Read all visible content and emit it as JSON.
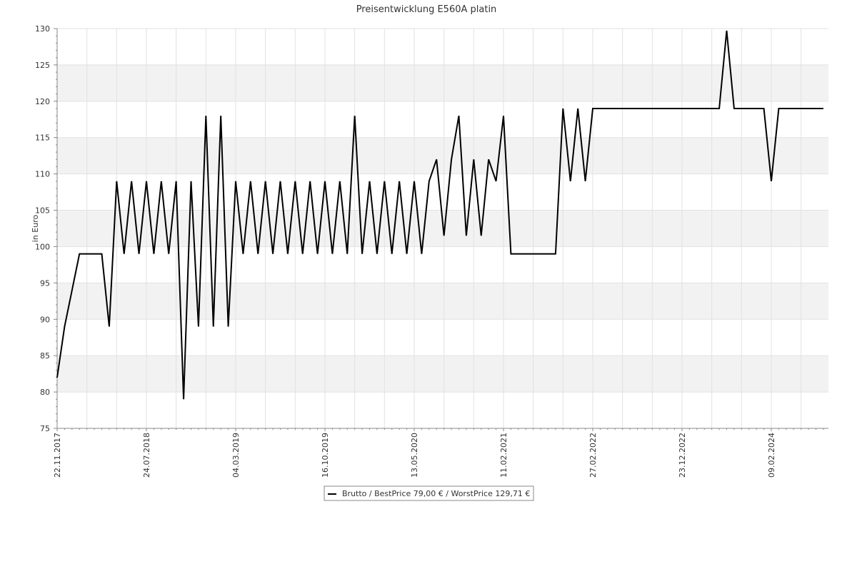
{
  "chart_data": {
    "type": "line",
    "title": "Preisentwicklung E560A platin",
    "y_label": "in Euro",
    "categories": [
      "22.11.2017",
      null,
      null,
      null,
      null,
      null,
      null,
      null,
      null,
      null,
      null,
      null,
      "24.07.2018",
      null,
      null,
      null,
      null,
      null,
      null,
      null,
      null,
      null,
      null,
      null,
      "04.03.2019",
      null,
      null,
      null,
      null,
      null,
      null,
      null,
      null,
      null,
      null,
      null,
      "16.10.2019",
      null,
      null,
      null,
      null,
      null,
      null,
      null,
      null,
      null,
      null,
      null,
      "13.05.2020",
      null,
      null,
      null,
      null,
      null,
      null,
      null,
      null,
      null,
      null,
      null,
      "11.02.2021",
      null,
      null,
      null,
      null,
      null,
      null,
      null,
      null,
      null,
      null,
      null,
      "27.02.2022",
      null,
      null,
      null,
      null,
      null,
      null,
      null,
      null,
      null,
      null,
      null,
      "23.12.2022",
      null,
      null,
      null,
      null,
      null,
      null,
      null,
      null,
      null,
      null,
      null,
      "09.02.2024",
      null,
      null,
      null,
      null,
      null,
      null,
      null
    ],
    "series": [
      {
        "name": "Brutto / BestPrice  79,00 € / WorstPrice  129,71 €",
        "color": "#000000",
        "values": [
          82,
          89,
          94,
          99,
          99,
          99,
          99,
          89,
          109,
          99,
          109,
          99,
          109,
          99,
          109,
          99,
          109,
          79,
          109,
          89,
          118,
          89,
          118,
          89,
          109,
          99,
          109,
          99,
          109,
          99,
          109,
          99,
          109,
          99,
          109,
          99,
          109,
          99,
          109,
          99,
          118,
          99,
          109,
          99,
          109,
          99,
          109,
          99,
          109,
          99,
          109,
          112,
          101.5,
          112,
          118,
          101.5,
          112,
          101.5,
          112,
          109,
          118,
          99,
          99,
          99,
          99,
          99,
          99,
          99,
          119,
          109,
          119,
          109,
          119,
          119,
          119,
          119,
          119,
          119,
          119,
          119,
          119,
          119,
          119,
          119,
          119,
          119,
          119,
          119,
          119,
          119,
          129.71,
          119,
          119,
          119,
          119,
          119,
          109,
          119,
          119,
          119,
          119,
          119,
          119,
          119
        ]
      }
    ],
    "ylim": [
      75,
      130
    ],
    "yticks": [
      75,
      80,
      85,
      90,
      95,
      100,
      105,
      110,
      115,
      120,
      125,
      130
    ],
    "grid": true
  }
}
